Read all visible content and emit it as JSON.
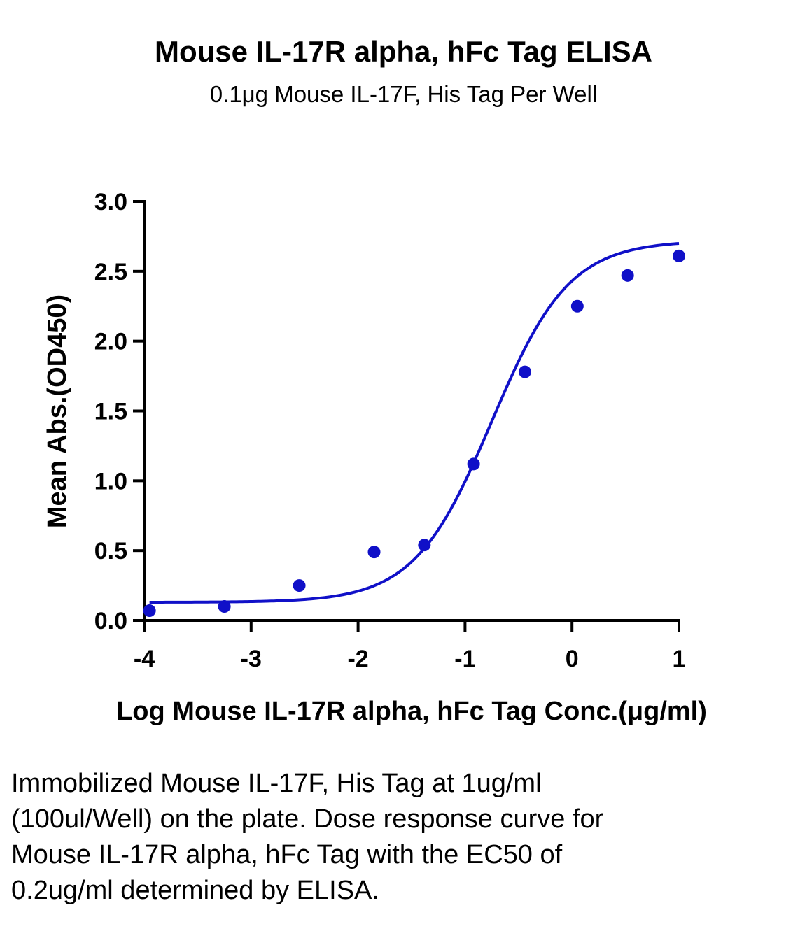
{
  "chart_data": {
    "type": "scatter",
    "title": "Mouse IL-17R alpha, hFc Tag ELISA",
    "subtitle": "0.1μg Mouse IL-17F, His Tag Per Well",
    "xlabel": "Log Mouse IL-17R alpha, hFc Tag Conc.(μg/ml)",
    "ylabel": "Mean Abs.(OD450)",
    "xlim": [
      -4,
      1
    ],
    "ylim": [
      0,
      3.0
    ],
    "x_ticks": [
      "-4",
      "-3",
      "-2",
      "-1",
      "0",
      "1"
    ],
    "x_tick_values": [
      -4,
      -3,
      -2,
      -1,
      0,
      1
    ],
    "y_ticks": [
      "0.0",
      "0.5",
      "1.0",
      "1.5",
      "2.0",
      "2.5",
      "3.0"
    ],
    "y_tick_values": [
      0,
      0.5,
      1.0,
      1.5,
      2.0,
      2.5,
      3.0
    ],
    "grid": false,
    "series": [
      {
        "color": "#1010c8",
        "points": [
          {
            "x": -3.95,
            "y": 0.07
          },
          {
            "x": -3.25,
            "y": 0.1
          },
          {
            "x": -2.55,
            "y": 0.25
          },
          {
            "x": -1.85,
            "y": 0.49
          },
          {
            "x": -1.38,
            "y": 0.54
          },
          {
            "x": -0.92,
            "y": 1.12
          },
          {
            "x": -0.44,
            "y": 1.78
          },
          {
            "x": 0.05,
            "y": 2.25
          },
          {
            "x": 0.52,
            "y": 2.47
          },
          {
            "x": 1.0,
            "y": 2.61
          }
        ],
        "fit": {
          "model": "4PL",
          "x_from": -3.95,
          "x_to": 1.0,
          "bottom": 0.13,
          "top": 2.72,
          "log_ec50": -0.75,
          "hill": 1.2
        }
      }
    ]
  },
  "caption": "Immobilized Mouse IL-17F, His Tag at 1ug/ml (100ul/Well) on the plate. Dose response curve for Mouse IL-17R alpha, hFc Tag with the EC50 of 0.2ug/ml determined by ELISA."
}
